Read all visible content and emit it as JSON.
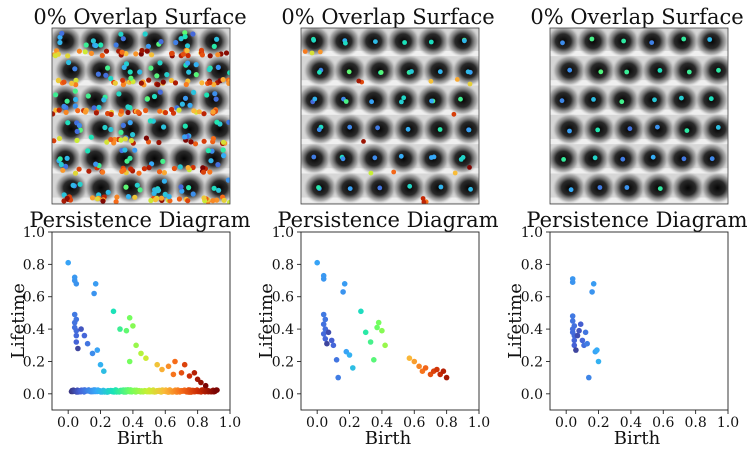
{
  "figure": {
    "surface_title": "0% Overlap Surface",
    "diagram_title": "Persistence Diagram",
    "colormap": [
      "#30123b",
      "#4662d7",
      "#36aaf9",
      "#1ae4b6",
      "#72fe5e",
      "#c8ef34",
      "#faba39",
      "#f66b19",
      "#ca2a04",
      "#7a0403"
    ]
  },
  "chart_data": [
    {
      "type": "scatter",
      "title": "Persistence Diagram",
      "xlabel": "Birth",
      "ylabel": "Lifetime",
      "xlim": [
        -0.1,
        1.0
      ],
      "ylim": [
        -0.1,
        1.0
      ],
      "xticks": [
        "0.0",
        "0.2",
        "0.4",
        "0.6",
        "0.8",
        "1.0"
      ],
      "yticks": [
        "0.0",
        "0.2",
        "0.4",
        "0.6",
        "0.8",
        "1.0"
      ],
      "grid": false,
      "points": [
        [
          0.0,
          0.81
        ],
        [
          0.04,
          0.72
        ],
        [
          0.04,
          0.7
        ],
        [
          0.05,
          0.68
        ],
        [
          0.04,
          0.49
        ],
        [
          0.05,
          0.46
        ],
        [
          0.04,
          0.44
        ],
        [
          0.04,
          0.41
        ],
        [
          0.05,
          0.39
        ],
        [
          0.05,
          0.36
        ],
        [
          0.05,
          0.32
        ],
        [
          0.06,
          0.28
        ],
        [
          0.08,
          0.4
        ],
        [
          0.1,
          0.36
        ],
        [
          0.12,
          0.31
        ],
        [
          0.16,
          0.62
        ],
        [
          0.17,
          0.68
        ],
        [
          0.15,
          0.25
        ],
        [
          0.18,
          0.27
        ],
        [
          0.2,
          0.18
        ],
        [
          0.22,
          0.14
        ],
        [
          0.28,
          0.51
        ],
        [
          0.32,
          0.4
        ],
        [
          0.36,
          0.39
        ],
        [
          0.38,
          0.47
        ],
        [
          0.4,
          0.42
        ],
        [
          0.42,
          0.3
        ],
        [
          0.38,
          0.2
        ],
        [
          0.45,
          0.25
        ],
        [
          0.48,
          0.22
        ],
        [
          0.55,
          0.18
        ],
        [
          0.58,
          0.15
        ],
        [
          0.62,
          0.17
        ],
        [
          0.65,
          0.12
        ],
        [
          0.66,
          0.2
        ],
        [
          0.7,
          0.13
        ],
        [
          0.72,
          0.18
        ],
        [
          0.75,
          0.11
        ],
        [
          0.78,
          0.13
        ],
        [
          0.8,
          0.09
        ],
        [
          0.82,
          0.07
        ],
        [
          0.85,
          0.05
        ]
      ],
      "baseline_band": {
        "from": 0.02,
        "to": 0.92,
        "lifetime": 0.01
      }
    },
    {
      "type": "scatter",
      "title": "Persistence Diagram",
      "xlabel": "Birth",
      "ylabel": "Lifetime",
      "xlim": [
        -0.1,
        1.0
      ],
      "ylim": [
        -0.1,
        1.0
      ],
      "xticks": [
        "0.0",
        "0.2",
        "0.4",
        "0.6",
        "0.8",
        "1.0"
      ],
      "yticks": [
        "0.0",
        "0.2",
        "0.4",
        "0.6",
        "0.8",
        "1.0"
      ],
      "grid": false,
      "points": [
        [
          0.0,
          0.81
        ],
        [
          0.04,
          0.73
        ],
        [
          0.04,
          0.71
        ],
        [
          0.04,
          0.49
        ],
        [
          0.05,
          0.46
        ],
        [
          0.04,
          0.43
        ],
        [
          0.05,
          0.4
        ],
        [
          0.04,
          0.37
        ],
        [
          0.05,
          0.34
        ],
        [
          0.06,
          0.31
        ],
        [
          0.07,
          0.38
        ],
        [
          0.09,
          0.33
        ],
        [
          0.1,
          0.3
        ],
        [
          0.12,
          0.21
        ],
        [
          0.13,
          0.1
        ],
        [
          0.16,
          0.63
        ],
        [
          0.17,
          0.68
        ],
        [
          0.18,
          0.26
        ],
        [
          0.2,
          0.24
        ],
        [
          0.22,
          0.16
        ],
        [
          0.27,
          0.51
        ],
        [
          0.3,
          0.38
        ],
        [
          0.33,
          0.32
        ],
        [
          0.35,
          0.21
        ],
        [
          0.37,
          0.41
        ],
        [
          0.38,
          0.44
        ],
        [
          0.4,
          0.39
        ],
        [
          0.42,
          0.3
        ],
        [
          0.57,
          0.22
        ],
        [
          0.6,
          0.2
        ],
        [
          0.63,
          0.17
        ],
        [
          0.65,
          0.14
        ],
        [
          0.67,
          0.16
        ],
        [
          0.7,
          0.12
        ],
        [
          0.72,
          0.14
        ],
        [
          0.74,
          0.15
        ],
        [
          0.76,
          0.12
        ],
        [
          0.78,
          0.14
        ],
        [
          0.8,
          0.1
        ]
      ]
    },
    {
      "type": "scatter",
      "title": "Persistence Diagram",
      "xlabel": "Birth",
      "ylabel": "Lifetime",
      "xlim": [
        -0.1,
        1.0
      ],
      "ylim": [
        -0.1,
        1.0
      ],
      "xticks": [
        "0.0",
        "0.2",
        "0.4",
        "0.6",
        "0.8",
        "1.0"
      ],
      "yticks": [
        "0.0",
        "0.2",
        "0.4",
        "0.6",
        "0.8",
        "1.0"
      ],
      "grid": false,
      "points": [
        [
          0.04,
          0.71
        ],
        [
          0.04,
          0.69
        ],
        [
          0.04,
          0.48
        ],
        [
          0.04,
          0.45
        ],
        [
          0.05,
          0.42
        ],
        [
          0.04,
          0.4
        ],
        [
          0.04,
          0.38
        ],
        [
          0.05,
          0.36
        ],
        [
          0.05,
          0.33
        ],
        [
          0.05,
          0.3
        ],
        [
          0.06,
          0.27
        ],
        [
          0.07,
          0.36
        ],
        [
          0.08,
          0.39
        ],
        [
          0.09,
          0.43
        ],
        [
          0.1,
          0.33
        ],
        [
          0.11,
          0.3
        ],
        [
          0.12,
          0.38
        ],
        [
          0.13,
          0.31
        ],
        [
          0.14,
          0.1
        ],
        [
          0.16,
          0.63
        ],
        [
          0.17,
          0.68
        ],
        [
          0.18,
          0.26
        ],
        [
          0.19,
          0.27
        ],
        [
          0.2,
          0.2
        ]
      ]
    }
  ]
}
